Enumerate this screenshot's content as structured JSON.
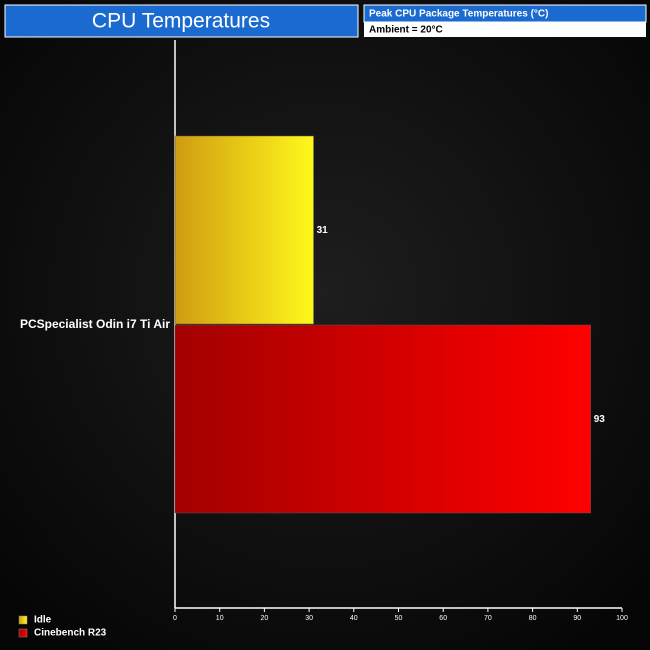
{
  "chart_data": {
    "type": "bar",
    "orientation": "horizontal",
    "title": "CPU Temperatures",
    "subtitle": "Peak CPU Package Temperatures (°C)",
    "annotation": "Ambient = 20°C",
    "categories": [
      "PCSpecialist Odin i7 Ti Air"
    ],
    "series": [
      {
        "name": "Idle",
        "color": "#f5b814",
        "values": [
          31
        ]
      },
      {
        "name": "Cinebench R23",
        "color": "#c00000",
        "values": [
          93
        ]
      }
    ],
    "xlim": [
      0,
      100
    ],
    "xticks": [
      0,
      10,
      20,
      30,
      40,
      50,
      60,
      70,
      80,
      90,
      100
    ],
    "legend": "bottom-left"
  }
}
